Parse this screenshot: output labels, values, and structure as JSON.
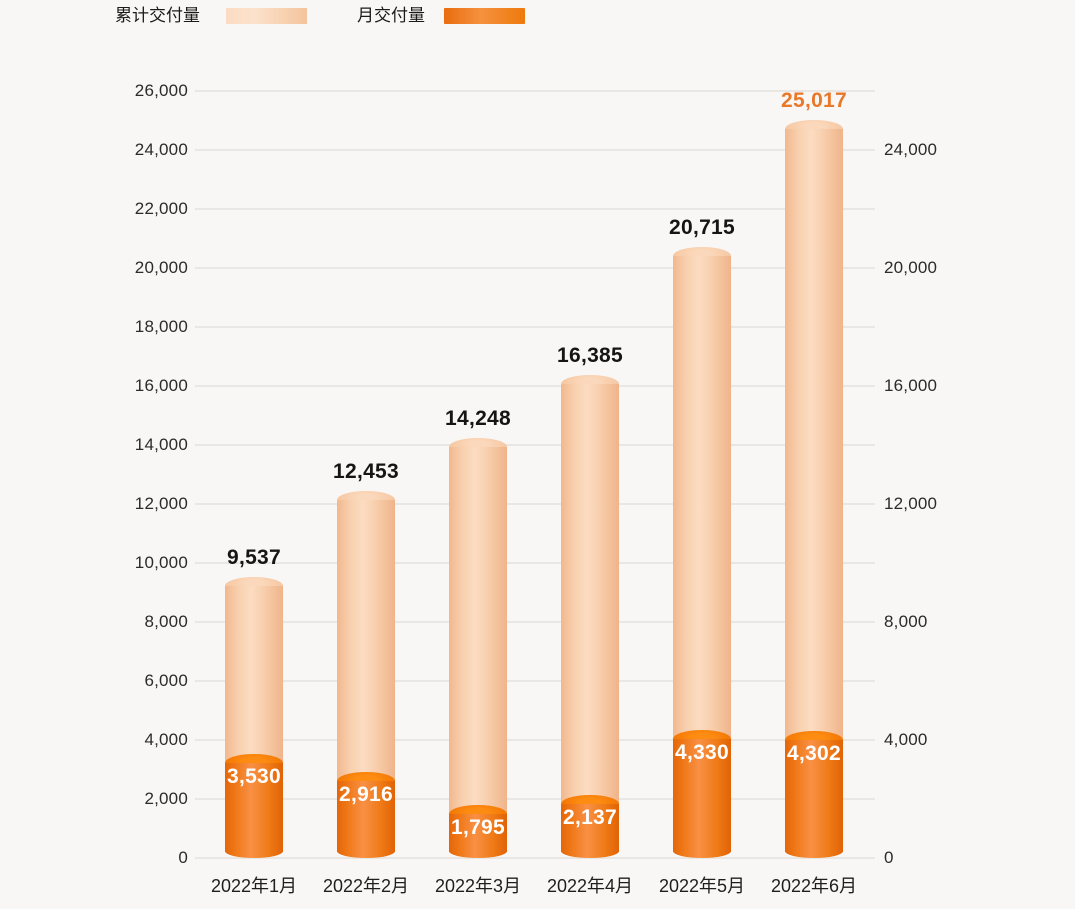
{
  "chart_data": {
    "type": "bar",
    "title": "",
    "categories": [
      "2022年1月",
      "2022年2月",
      "2022年3月",
      "2022年4月",
      "2022年5月",
      "2022年6月"
    ],
    "series": [
      {
        "name": "累计交付量",
        "role": "cumulative",
        "values": [
          9537,
          12453,
          14248,
          16385,
          20715,
          25017
        ],
        "labels": [
          "9,537",
          "12,453",
          "14,248",
          "16,385",
          "20,715",
          "25,017"
        ]
      },
      {
        "name": "月交付量",
        "role": "monthly",
        "values": [
          3530,
          2916,
          1795,
          2137,
          4330,
          4302
        ],
        "labels": [
          "3,530",
          "2,916",
          "1,795",
          "2,137",
          "4,330",
          "4,302"
        ]
      }
    ],
    "y_axis_left": {
      "min": 0,
      "max": 26000,
      "step": 2000,
      "ticks": [
        0,
        2000,
        4000,
        6000,
        8000,
        10000,
        12000,
        14000,
        16000,
        18000,
        20000,
        22000,
        24000,
        26000
      ],
      "tick_labels": [
        "0",
        "2,000",
        "4,000",
        "6,000",
        "8,000",
        "10,000",
        "12,000",
        "14,000",
        "16,000",
        "18,000",
        "20,000",
        "22,000",
        "24,000",
        "26,000"
      ]
    },
    "y_axis_right": {
      "min": 0,
      "max": 24000,
      "step": 4000,
      "ticks": [
        0,
        4000,
        8000,
        12000,
        16000,
        20000,
        24000
      ],
      "tick_labels": [
        "0",
        "4,000",
        "8,000",
        "12,000",
        "16,000",
        "20,000",
        "24,000"
      ]
    },
    "grid": true,
    "legend_position": "top-left",
    "highlight_last_cumulative_label": true,
    "colors": {
      "background": "#f8f7f5",
      "gridline": "#e9e7e4",
      "axis_text": "#2b2b2b",
      "cumulative_bar": "#f8cfae",
      "cumulative_bar_top": "#f5c49e",
      "monthly_bar": "#f07a1a",
      "monthly_bar_top": "#f57502",
      "cumulative_label": "#151515",
      "cumulative_label_highlight": "#e8782a",
      "monthly_label": "#ffffff"
    }
  }
}
